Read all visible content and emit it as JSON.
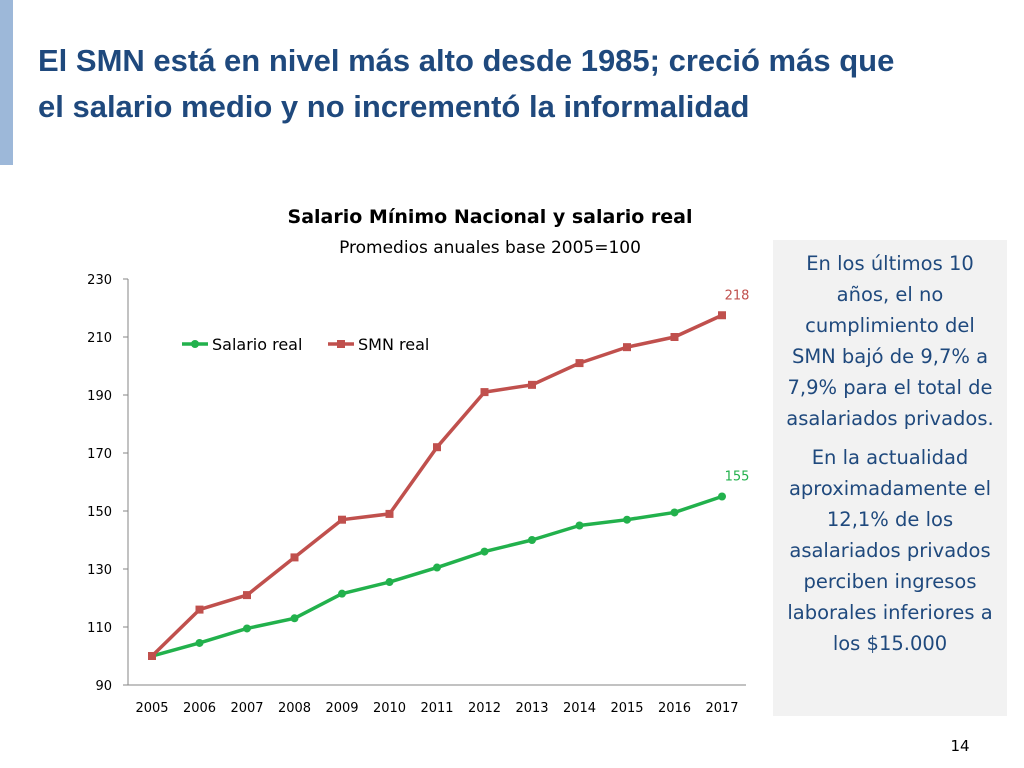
{
  "slide": {
    "title_line1": "El SMN está en nivel más alto desde 1985; creció más que",
    "title_line2": "el  salario medio y no incrementó la informalidad",
    "page_number": "14"
  },
  "note": {
    "paragraph1": "En los últimos 10 años, el no cumplimiento del SMN bajó de 9,7% a 7,9% para el total de asalariados privados.",
    "paragraph2": "En la actualidad aproximadamente el 12,1% de los asalariados privados perciben ingresos laborales inferiores a los $15.000"
  },
  "colors": {
    "title": "#1f497d",
    "salario_real": "#22b14c",
    "smn_real": "#c0504d",
    "note_background": "#f2f2f2",
    "accent_bar": "#9db8d9"
  },
  "chart_data": {
    "type": "line",
    "title": "Salario Mínimo Nacional y salario real",
    "subtitle": "Promedios anuales base 2005=100",
    "xlabel": "",
    "ylabel": "",
    "x": [
      "2005",
      "2006",
      "2007",
      "2008",
      "2009",
      "2010",
      "2011",
      "2012",
      "2013",
      "2014",
      "2015",
      "2016",
      "2017"
    ],
    "ylim": [
      90,
      230
    ],
    "yticks": [
      90,
      110,
      130,
      150,
      170,
      190,
      210,
      230
    ],
    "grid": false,
    "legend_position": "top-left",
    "series": [
      {
        "name": "Salario real",
        "color": "#22b14c",
        "marker": "circle",
        "values": [
          100,
          104.5,
          109.5,
          113,
          121.5,
          125.5,
          130.5,
          136,
          140,
          145,
          147,
          149.5,
          155
        ],
        "end_label": "155"
      },
      {
        "name": "SMN real",
        "color": "#c0504d",
        "marker": "square",
        "values": [
          100,
          116,
          121,
          134,
          147,
          149,
          172,
          191,
          193.5,
          201,
          206.5,
          210,
          217.5
        ],
        "end_label": "218"
      }
    ]
  }
}
